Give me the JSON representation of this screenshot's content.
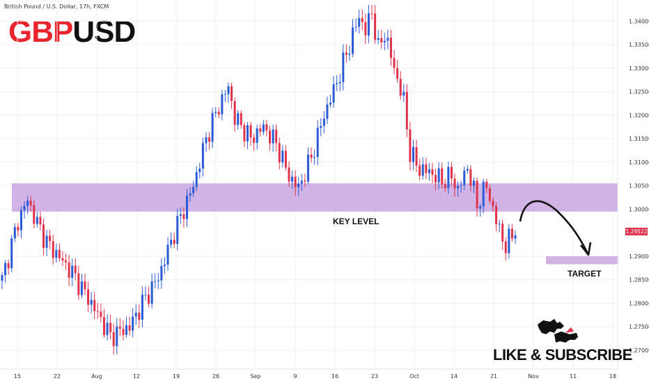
{
  "header": {
    "symbol_label": "British Pound / U.S. Dollar, 17h, FXCM",
    "title_part1": "GBP",
    "title_part2": "USD"
  },
  "colors": {
    "bull": "#2a5bd7",
    "bear": "#e0324b",
    "zone": "#c9a6e1",
    "title_red": "#e8242d",
    "title_dark": "#111111",
    "grid": "#f0f0f0",
    "price_tag": "#e0324b"
  },
  "annotations": {
    "key_level": "KEY LEVEL",
    "target": "TARGET",
    "cta": "LIKE & SUBSCRIBE",
    "current_price": "1.29522"
  },
  "chart_data": {
    "type": "candlestick",
    "ylim": [
      1.266,
      1.3445
    ],
    "yticks": [
      1.34,
      1.335,
      1.33,
      1.325,
      1.32,
      1.315,
      1.31,
      1.305,
      1.3,
      1.29522,
      1.29,
      1.285,
      1.28,
      1.275,
      1.27
    ],
    "ytick_labels": [
      "1.34000",
      "1.33500",
      "1.33000",
      "1.32500",
      "1.32000",
      "1.31500",
      "1.31000",
      "1.30500",
      "1.30000",
      "1.29522",
      "1.29000",
      "1.28500",
      "1.28000",
      "1.27500",
      "1.27000"
    ],
    "xticks": [
      "15",
      "22",
      "Aug",
      "12",
      "19",
      "26",
      "Sep",
      "9",
      "16",
      "23",
      "Oct",
      "14",
      "21",
      "Nov",
      "11",
      "18"
    ],
    "key_zone": [
      1.2995,
      1.3055
    ],
    "target_zone": [
      1.2883,
      1.29
    ],
    "key_points": [
      [
        0,
        1.285
      ],
      [
        5,
        1.2975
      ],
      [
        8,
        1.302
      ],
      [
        10,
        1.2985
      ],
      [
        14,
        1.293
      ],
      [
        22,
        1.2865
      ],
      [
        28,
        1.28
      ],
      [
        34,
        1.273
      ],
      [
        40,
        1.275
      ],
      [
        44,
        1.28
      ],
      [
        49,
        1.2855
      ],
      [
        54,
        1.295
      ],
      [
        60,
        1.305
      ],
      [
        64,
        1.315
      ],
      [
        68,
        1.322
      ],
      [
        71,
        1.326
      ],
      [
        73,
        1.3195
      ],
      [
        78,
        1.315
      ],
      [
        82,
        1.3175
      ],
      [
        86,
        1.314
      ],
      [
        90,
        1.307
      ],
      [
        93,
        1.3045
      ],
      [
        97,
        1.311
      ],
      [
        101,
        1.32
      ],
      [
        105,
        1.327
      ],
      [
        109,
        1.335
      ],
      [
        112,
        1.341
      ],
      [
        114,
        1.338
      ],
      [
        116,
        1.342
      ],
      [
        118,
        1.334
      ],
      [
        120,
        1.3375
      ],
      [
        123,
        1.33
      ],
      [
        126,
        1.323
      ],
      [
        128,
        1.312
      ],
      [
        131,
        1.3085
      ],
      [
        134,
        1.308
      ],
      [
        138,
        1.306
      ],
      [
        141,
        1.307
      ],
      [
        143,
        1.304
      ],
      [
        146,
        1.309
      ],
      [
        149,
        1.301
      ],
      [
        152,
        1.305
      ],
      [
        155,
        1.2975
      ],
      [
        158,
        1.292
      ],
      [
        161,
        1.296
      ]
    ]
  }
}
